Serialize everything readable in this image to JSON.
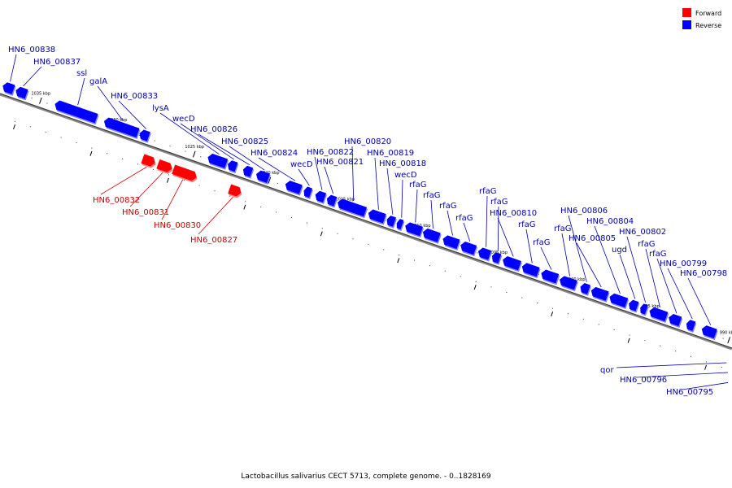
{
  "caption": "Lactobacillus salivarius CECT 5713, complete genome. - 0..1828169",
  "colors": {
    "forward": "#ff0000",
    "forward_light": "#ff8080",
    "forward_label": "#cc0000",
    "reverse": "#0000ff",
    "reverse_light": "#8080ff",
    "reverse_label": "#0000aa",
    "backbone": "#888888"
  },
  "legend": [
    {
      "label": "Forward",
      "strand": "forward"
    },
    {
      "label": "Reverse",
      "strand": "reverse"
    }
  ],
  "scale_labels": [
    "1035 kbp",
    "1030 kbp",
    "1025 kbp",
    "1020 kbp",
    "1015 kbp",
    "1010 kbp",
    "1005 kbp",
    "1000 kbp",
    "995 kbp",
    "990 kbp"
  ],
  "genes": [
    {
      "name": "HN6_00838",
      "strand": "reverse"
    },
    {
      "name": "HN6_00837",
      "strand": "reverse"
    },
    {
      "name": "ssl",
      "strand": "reverse"
    },
    {
      "name": "galA",
      "strand": "reverse"
    },
    {
      "name": "HN6_00833",
      "strand": "reverse"
    },
    {
      "name": "lysA",
      "strand": "reverse"
    },
    {
      "name": "wecD",
      "strand": "reverse"
    },
    {
      "name": "HN6_00826",
      "strand": "reverse"
    },
    {
      "name": "HN6_00825",
      "strand": "reverse"
    },
    {
      "name": "HN6_00824",
      "strand": "reverse"
    },
    {
      "name": "wecD",
      "strand": "reverse"
    },
    {
      "name": "HN6_00822",
      "strand": "reverse"
    },
    {
      "name": "HN6_00821",
      "strand": "reverse"
    },
    {
      "name": "HN6_00820",
      "strand": "reverse"
    },
    {
      "name": "HN6_00819",
      "strand": "reverse"
    },
    {
      "name": "HN6_00818",
      "strand": "reverse"
    },
    {
      "name": "wecD",
      "strand": "reverse"
    },
    {
      "name": "rfaG",
      "strand": "reverse"
    },
    {
      "name": "rfaG",
      "strand": "reverse"
    },
    {
      "name": "rfaG",
      "strand": "reverse"
    },
    {
      "name": "rfaG",
      "strand": "reverse"
    },
    {
      "name": "rfaG",
      "strand": "reverse"
    },
    {
      "name": "rfaG",
      "strand": "reverse"
    },
    {
      "name": "HN6_00810",
      "strand": "reverse"
    },
    {
      "name": "rfaG",
      "strand": "reverse"
    },
    {
      "name": "rfaG",
      "strand": "reverse"
    },
    {
      "name": "rfaG",
      "strand": "reverse"
    },
    {
      "name": "HN6_00806",
      "strand": "reverse"
    },
    {
      "name": "HN6_00805",
      "strand": "reverse"
    },
    {
      "name": "HN6_00804",
      "strand": "reverse"
    },
    {
      "name": "ugd",
      "strand": "reverse"
    },
    {
      "name": "HN6_00802",
      "strand": "reverse"
    },
    {
      "name": "rfaG",
      "strand": "reverse"
    },
    {
      "name": "rfaG",
      "strand": "reverse"
    },
    {
      "name": "HN6_00799",
      "strand": "reverse"
    },
    {
      "name": "HN6_00798",
      "strand": "reverse"
    },
    {
      "name": "HN6_00832",
      "strand": "forward"
    },
    {
      "name": "HN6_00831",
      "strand": "forward"
    },
    {
      "name": "HN6_00830",
      "strand": "forward"
    },
    {
      "name": "HN6_00827",
      "strand": "forward"
    },
    {
      "name": "qor",
      "strand": "reverse"
    },
    {
      "name": "HN6_00796",
      "strand": "reverse"
    },
    {
      "name": "HN6_00795",
      "strand": "reverse"
    }
  ]
}
